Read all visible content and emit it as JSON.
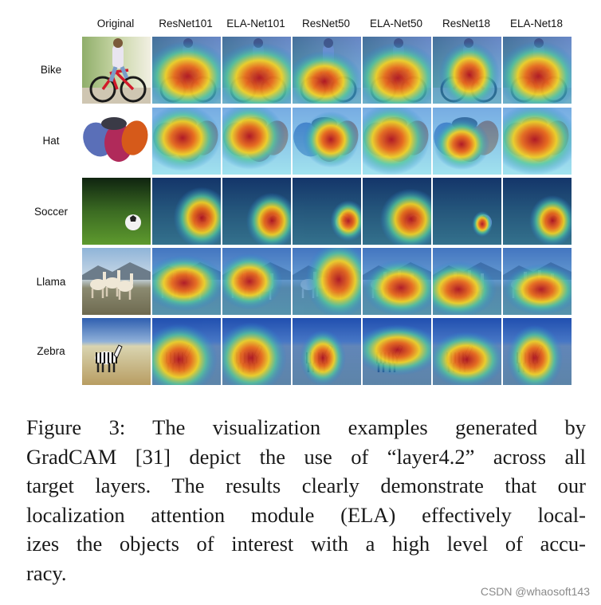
{
  "figure": {
    "columns": [
      "Original",
      "ResNet101",
      "ELA-Net101",
      "ResNet50",
      "ELA-Net50",
      "ResNet18",
      "ELA-Net18"
    ],
    "rows": [
      "Bike",
      "Hat",
      "Soccer",
      "Llama",
      "Zebra"
    ]
  },
  "caption": {
    "lines": [
      "Figure 3: The visualization examples generated by",
      "GradCAM [31] depict the use of “layer4.2” across all",
      "target layers. The results clearly demonstrate that our",
      "localization attention module (ELA) effectively local-",
      "izes the objects of interest with a high level of accu-",
      "racy."
    ]
  },
  "watermark": "CSDN @whaosoft143"
}
